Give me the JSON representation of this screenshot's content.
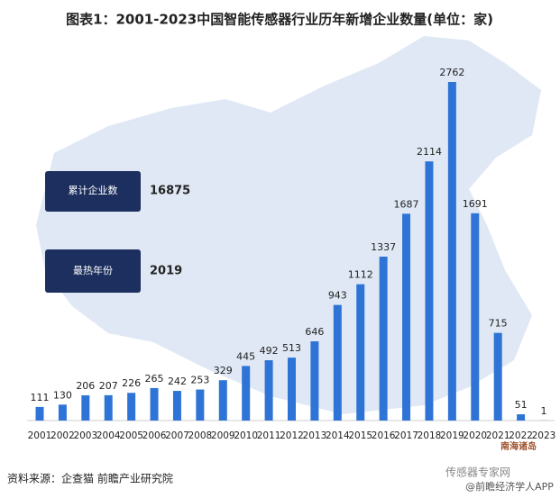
{
  "chart_data": {
    "type": "bar",
    "title": "图表1：2001-2023中国智能传感器行业历年新增企业数量(单位：家)",
    "categories": [
      "2001",
      "2002",
      "2003",
      "2004",
      "2005",
      "2006",
      "2007",
      "2008",
      "2009",
      "2010",
      "2011",
      "2012",
      "2013",
      "2014",
      "2015",
      "2016",
      "2017",
      "2018",
      "2019",
      "2020",
      "2021",
      "2022",
      "2023"
    ],
    "values": [
      111,
      130,
      206,
      207,
      226,
      265,
      242,
      253,
      329,
      445,
      492,
      513,
      646,
      943,
      1112,
      1337,
      1687,
      2114,
      2762,
      1691,
      715,
      51,
      1
    ],
    "color": "#2e74d6",
    "stats": [
      {
        "label": "累计企业数",
        "value": 16875
      },
      {
        "label": "最热年份",
        "value": 2019
      }
    ],
    "source": "资料来源：企查猫 前瞻产业研究院",
    "map_note": "南海诸岛",
    "watermarks": [
      "传感器专家网",
      "@前瞻经济学人APP"
    ]
  }
}
